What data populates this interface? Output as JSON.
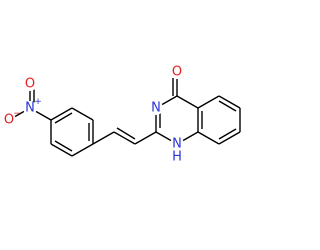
{
  "atoms": [
    {
      "label": "O"
    },
    {
      "label": "N"
    },
    {
      "label": "N"
    },
    {
      "label": "H"
    },
    {
      "label": "N",
      "charge": "+"
    },
    {
      "label": "O",
      "charge": "−"
    },
    {
      "label": "O"
    }
  ]
}
